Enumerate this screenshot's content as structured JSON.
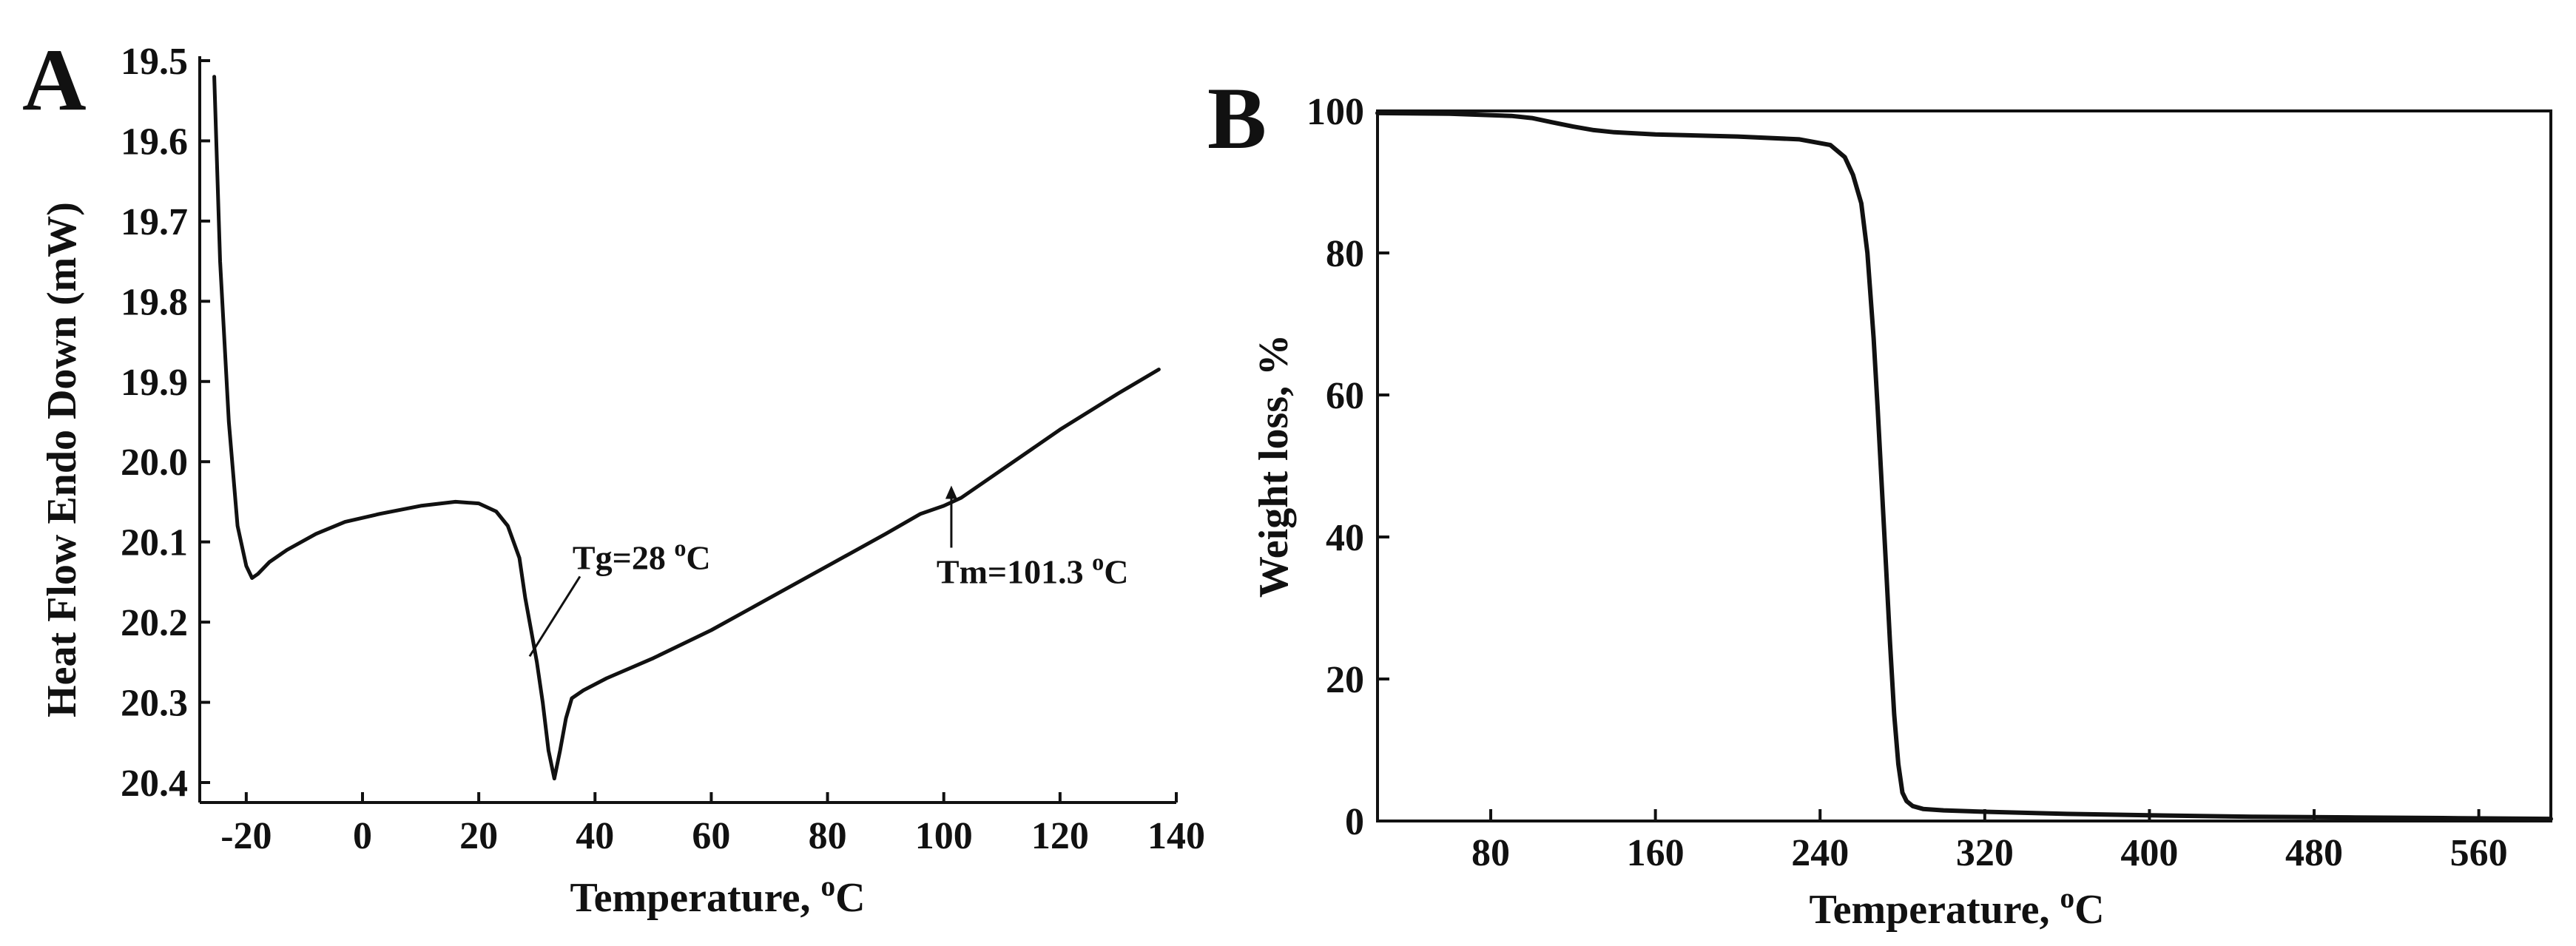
{
  "chart_data": [
    {
      "type": "line",
      "panel": "A",
      "title": "",
      "xlabel": "Temperature,",
      "xlabel_unit_sup": "o",
      "xlabel_unit": "C",
      "ylabel": "Heat Flow Endo Down (mW)",
      "xlim": [
        -28,
        140
      ],
      "ylim": [
        20.4,
        19.5
      ],
      "y_inverted": true,
      "x_ticks": [
        -20,
        0,
        20,
        40,
        60,
        80,
        100,
        120,
        140
      ],
      "x_tick_labels": [
        "-20",
        "0",
        "20",
        "40",
        "60",
        "80",
        "100",
        "120",
        "140"
      ],
      "y_ticks": [
        19.5,
        19.6,
        19.7,
        19.8,
        19.9,
        20.0,
        20.1,
        20.2,
        20.3,
        20.4
      ],
      "y_tick_labels": [
        "19.5",
        "19.6",
        "19.7",
        "19.8",
        "19.9",
        "20.0",
        "20.1",
        "20.2",
        "20.3",
        "20.4"
      ],
      "grid": false,
      "series": [
        {
          "x": [
            -25.5,
            -24.5,
            -23,
            -21.5,
            -20,
            -19,
            -18,
            -16,
            -13,
            -8,
            -3,
            3,
            10,
            16,
            20,
            23,
            25,
            27,
            28,
            29,
            30,
            31,
            32,
            33,
            34,
            35,
            36,
            38,
            42,
            50,
            60,
            70,
            80,
            90,
            96,
            100,
            103,
            110,
            120,
            130,
            137
          ],
          "y": [
            19.52,
            19.75,
            19.95,
            20.08,
            20.13,
            20.145,
            20.14,
            20.125,
            20.11,
            20.09,
            20.075,
            20.065,
            20.055,
            20.05,
            20.052,
            20.062,
            20.08,
            20.12,
            20.17,
            20.21,
            20.25,
            20.3,
            20.36,
            20.395,
            20.36,
            20.32,
            20.295,
            20.285,
            20.27,
            20.245,
            20.21,
            20.17,
            20.13,
            20.09,
            20.065,
            20.055,
            20.045,
            20.01,
            19.96,
            19.915,
            19.885
          ]
        }
      ],
      "annotations": [
        {
          "label": "Tg=28",
          "sup": "o",
          "unit": "C",
          "x": 28.5,
          "y": 20.215
        },
        {
          "label": "Tm=101.3",
          "sup": "o",
          "unit": "C",
          "x": 101.3,
          "y": 20.05
        }
      ]
    },
    {
      "type": "line",
      "panel": "B",
      "title": "",
      "xlabel": "Temperature,",
      "xlabel_unit_sup": "o",
      "xlabel_unit": "C",
      "ylabel": "Weight loss, %",
      "xlim": [
        25,
        595
      ],
      "ylim": [
        0,
        100
      ],
      "x_ticks": [
        80,
        160,
        240,
        320,
        400,
        480,
        560
      ],
      "x_tick_labels": [
        "80",
        "160",
        "240",
        "320",
        "400",
        "480",
        "560"
      ],
      "y_ticks": [
        0,
        20,
        40,
        60,
        80,
        100
      ],
      "y_tick_labels": [
        "0",
        "20",
        "40",
        "60",
        "80",
        "100"
      ],
      "grid": false,
      "series": [
        {
          "x": [
            25,
            60,
            90,
            100,
            110,
            120,
            130,
            140,
            160,
            200,
            230,
            245,
            252,
            256,
            260,
            263,
            266,
            268,
            270,
            272,
            274,
            276,
            278,
            280,
            282,
            285,
            290,
            300,
            320,
            360,
            400,
            450,
            500,
            550,
            595
          ],
          "y": [
            99.7,
            99.6,
            99.3,
            99.0,
            98.4,
            97.8,
            97.3,
            97.0,
            96.7,
            96.4,
            96.0,
            95.2,
            93.5,
            91.0,
            87.0,
            80.0,
            68.0,
            58.0,
            47.0,
            36.0,
            25.0,
            15.0,
            8.0,
            4.0,
            2.8,
            2.1,
            1.7,
            1.5,
            1.3,
            1.0,
            0.8,
            0.6,
            0.5,
            0.4,
            0.3
          ]
        }
      ]
    }
  ]
}
